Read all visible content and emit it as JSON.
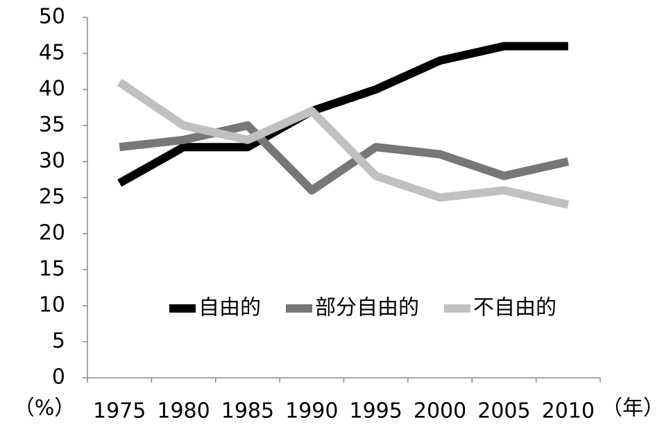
{
  "chart_data": {
    "type": "line",
    "y_label": "（%）",
    "x_label": "（年）",
    "categories": [
      "1975",
      "1980",
      "1985",
      "1990",
      "1995",
      "2000",
      "2005",
      "2010"
    ],
    "series": [
      {
        "name": "自由的",
        "color": "#000000",
        "values": [
          27,
          32,
          32,
          37,
          40,
          44,
          46,
          46
        ]
      },
      {
        "name": "部分自由的",
        "color": "#777777",
        "values": [
          32,
          33,
          35,
          26,
          32,
          31,
          28,
          30
        ]
      },
      {
        "name": "不自由的",
        "color": "#c0c0c0",
        "values": [
          41,
          35,
          33,
          37,
          28,
          25,
          26,
          24
        ]
      }
    ],
    "ylim": [
      0,
      50
    ],
    "yticks": [
      0,
      5,
      10,
      15,
      20,
      25,
      30,
      35,
      40,
      45,
      50
    ],
    "grid": false,
    "legend": "center"
  }
}
